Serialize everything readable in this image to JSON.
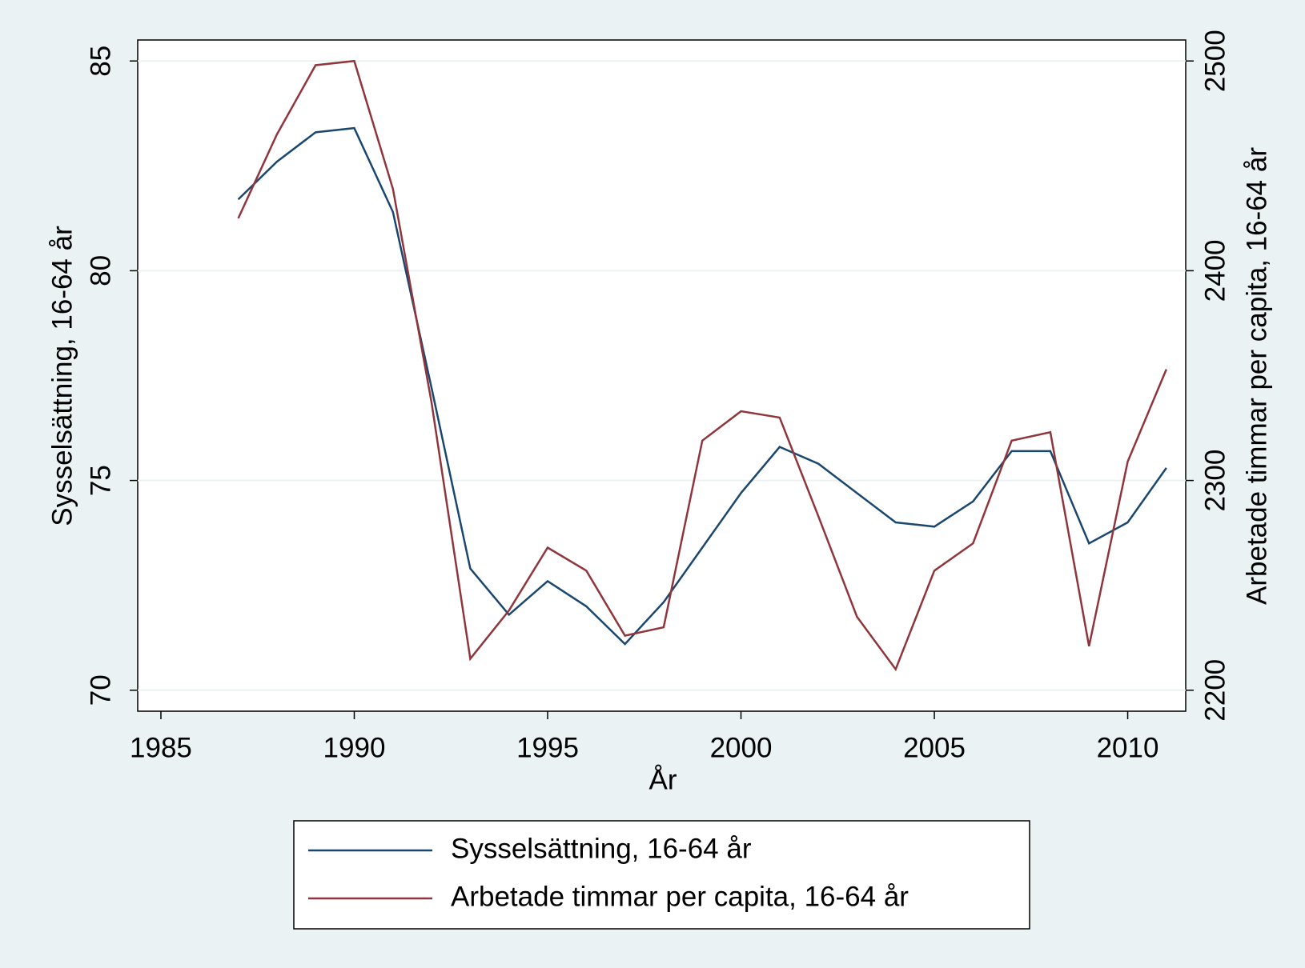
{
  "chart_data": {
    "type": "line",
    "x_label": "År",
    "y_label": "Sysselsättning, 16-64 år",
    "y2_label": "Arbetade timmar per capita, 16-64 år",
    "x": [
      1987,
      1988,
      1989,
      1990,
      1991,
      1992,
      1993,
      1994,
      1995,
      1996,
      1997,
      1998,
      1999,
      2000,
      2001,
      2002,
      2003,
      2004,
      2005,
      2006,
      2007,
      2008,
      2009,
      2010,
      2011
    ],
    "series": [
      {
        "name": "Sysselsättning, 16-64 år",
        "color": "#1a476f",
        "axis": "y",
        "values": [
          81.7,
          82.6,
          83.3,
          83.4,
          81.4,
          77.2,
          72.9,
          71.8,
          72.6,
          72.0,
          71.1,
          72.1,
          73.4,
          74.7,
          75.8,
          75.4,
          74.7,
          74.0,
          73.9,
          74.5,
          75.7,
          75.7,
          73.5,
          74.0,
          75.3
        ]
      },
      {
        "name": "Arbetade timmar per capita, 16-64 år",
        "color": "#90353b",
        "axis": "y2",
        "values": [
          2425,
          2465,
          2498,
          2500,
          2439,
          2337,
          2215,
          2238,
          2268,
          2257,
          2226,
          2230,
          2319,
          2333,
          2330,
          2283,
          2235,
          2210,
          2257,
          2270,
          2319,
          2323,
          2221,
          2309,
          2353
        ]
      }
    ],
    "xlim": [
      1984.4,
      2011.5
    ],
    "xticks": [
      1985,
      1990,
      1995,
      2000,
      2005,
      2010
    ],
    "ylim": [
      69.5,
      85.5
    ],
    "yticks": [
      70,
      75,
      80,
      85
    ],
    "y2lim": [
      2190,
      2510
    ],
    "y2ticks": [
      2200,
      2300,
      2400,
      2500
    ],
    "grid": true,
    "legend": "bottom"
  }
}
